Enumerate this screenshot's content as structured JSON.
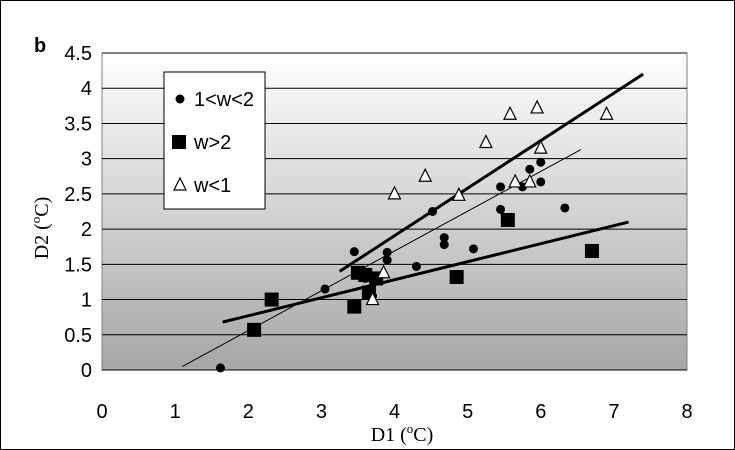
{
  "chart_data": {
    "type": "scatter",
    "panel_label": "b",
    "xlabel": {
      "main": "D1 (",
      "sup": "o",
      "unit": "C)"
    },
    "ylabel": {
      "main": "D2 (",
      "sup": "o",
      "unit": "C)"
    },
    "xlim": [
      0,
      8
    ],
    "ylim": [
      0,
      4.5
    ],
    "xticks": [
      "0",
      "1",
      "2",
      "3",
      "4",
      "5",
      "6",
      "7",
      "8"
    ],
    "yticks": [
      "0",
      "0.5",
      "1",
      "1.5",
      "2",
      "2.5",
      "3",
      "3.5",
      "4",
      "4.5"
    ],
    "grid": "horizontal",
    "background": "vertical gradient white to gray",
    "legend": {
      "position": "top-left"
    },
    "series": [
      {
        "name": "1<w<2",
        "marker": "circle",
        "color": "#000000",
        "points": [
          [
            1.62,
            0.03
          ],
          [
            3.05,
            1.15
          ],
          [
            3.45,
            1.68
          ],
          [
            3.52,
            1.4
          ],
          [
            3.6,
            1.3
          ],
          [
            3.7,
            1.05
          ],
          [
            3.9,
            1.67
          ],
          [
            3.9,
            1.56
          ],
          [
            4.3,
            1.47
          ],
          [
            4.52,
            2.25
          ],
          [
            4.68,
            1.88
          ],
          [
            4.68,
            1.78
          ],
          [
            5.08,
            1.72
          ],
          [
            5.45,
            2.6
          ],
          [
            5.45,
            2.28
          ],
          [
            5.75,
            2.6
          ],
          [
            5.85,
            2.85
          ],
          [
            6.0,
            2.95
          ],
          [
            6.0,
            2.67
          ],
          [
            6.33,
            2.3
          ]
        ]
      },
      {
        "name": "w>2",
        "marker": "square",
        "color": "#000000",
        "points": [
          [
            2.08,
            0.57
          ],
          [
            2.32,
            1.0
          ],
          [
            3.45,
            0.9
          ],
          [
            3.5,
            1.38
          ],
          [
            3.6,
            1.35
          ],
          [
            3.65,
            1.1
          ],
          [
            3.75,
            1.3
          ],
          [
            4.85,
            1.32
          ],
          [
            5.55,
            2.13
          ],
          [
            6.7,
            1.69
          ]
        ]
      },
      {
        "name": "w<1",
        "marker": "triangle-open",
        "color": "#000000",
        "points": [
          [
            3.7,
            1.0
          ],
          [
            3.85,
            1.38
          ],
          [
            4.0,
            2.5
          ],
          [
            4.42,
            2.75
          ],
          [
            4.88,
            2.48
          ],
          [
            5.25,
            3.23
          ],
          [
            5.58,
            3.63
          ],
          [
            5.65,
            2.67
          ],
          [
            5.85,
            2.67
          ],
          [
            5.95,
            3.72
          ],
          [
            6.0,
            3.15
          ],
          [
            6.9,
            3.63
          ]
        ]
      }
    ],
    "trendlines": [
      {
        "series": "1<w<2",
        "style": "thin",
        "from": [
          1.1,
          0.05
        ],
        "to": [
          6.55,
          3.13
        ]
      },
      {
        "series": "w>2",
        "style": "thick",
        "from": [
          1.65,
          0.68
        ],
        "to": [
          7.2,
          2.1
        ]
      },
      {
        "series": "w<1",
        "style": "thick",
        "from": [
          3.25,
          1.4
        ],
        "to": [
          7.4,
          4.2
        ]
      }
    ]
  }
}
